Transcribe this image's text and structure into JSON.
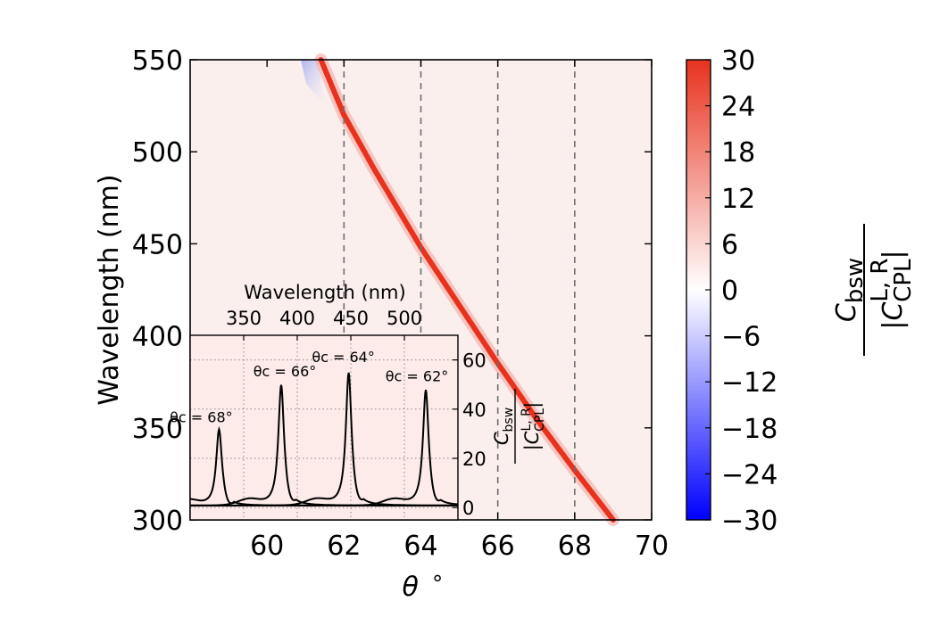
{
  "chart_data": [
    {
      "type": "heatmap",
      "xlabel": "θ°",
      "ylabel": "Wavelength (nm)",
      "xlim": [
        58,
        70
      ],
      "ylim": [
        300,
        550
      ],
      "xticks": [
        "60",
        "62",
        "64",
        "66",
        "68",
        "70"
      ],
      "yticks": [
        "300",
        "350",
        "400",
        "450",
        "500",
        "550"
      ],
      "vlines": [
        62,
        64,
        66,
        68
      ],
      "ridge": [
        {
          "theta": 61.4,
          "wavelength": 550
        },
        {
          "theta": 62.0,
          "wavelength": 520
        },
        {
          "theta": 62.8,
          "wavelength": 490
        },
        {
          "theta": 64.0,
          "wavelength": 448
        },
        {
          "theta": 66.0,
          "wavelength": 385
        },
        {
          "theta": 67.0,
          "wavelength": 355
        },
        {
          "theta": 68.0,
          "wavelength": 327
        },
        {
          "theta": 69.0,
          "wavelength": 300
        }
      ],
      "colorbar": {
        "min": -30,
        "max": 30,
        "ticks": [
          "30",
          "24",
          "18",
          "12",
          "6",
          "0",
          "−6",
          "−12",
          "−18",
          "−24",
          "−30"
        ],
        "label": "C_bsw / |C_CPL^{L,R}|",
        "colors": {
          "low": "#0000ff",
          "mid": "#ffffff",
          "high": "#e8321e"
        }
      }
    },
    {
      "type": "line",
      "title": "Wavelength (nm)",
      "xticks": [
        "350",
        "400",
        "450",
        "500"
      ],
      "xlim": [
        300,
        550
      ],
      "yticks": [
        "0",
        "20",
        "40",
        "60"
      ],
      "ylim": [
        -5,
        70
      ],
      "ylabel": "C_bsw / |C_CPL^{L,R}|",
      "series": [
        {
          "name": "θc = 68°",
          "peak_wavelength": 327,
          "peak_value": 31
        },
        {
          "name": "θc = 66°",
          "peak_wavelength": 385,
          "peak_value": 49
        },
        {
          "name": "θc = 64°",
          "peak_wavelength": 448,
          "peak_value": 54
        },
        {
          "name": "θc = 62°",
          "peak_wavelength": 520,
          "peak_value": 47
        }
      ],
      "annotations": [
        "θc = 68°",
        "θc = 66°",
        "θc = 64°",
        "θc = 62°"
      ]
    }
  ]
}
